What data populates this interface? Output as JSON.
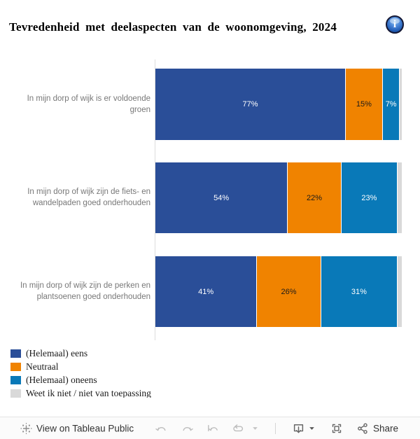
{
  "header": {
    "title": "Tevredenheid met deelaspecten van de woonomgeving, 2024",
    "info_icon": "i"
  },
  "chart_data": {
    "type": "bar",
    "orientation": "horizontal",
    "stacked": true,
    "title": "Tevredenheid met deelaspecten van de woonomgeving, 2024",
    "xlabel": "",
    "ylabel": "",
    "xlim": [
      0,
      100
    ],
    "value_suffix": "%",
    "grid": false,
    "legend_position": "bottom-left",
    "categories": [
      "In mijn dorp of wijk is er voldoende groen",
      "In mijn dorp of wijk zijn de fiets- en wandelpaden goed onderhouden",
      "In mijn dorp of wijk zijn de perken en plantsoenen goed onderhouden"
    ],
    "series": [
      {
        "name": "(Helemaal) eens",
        "color": "#2A4E98",
        "label_color": "#FFFFFF",
        "values": [
          77,
          54,
          41
        ],
        "show_labels": true
      },
      {
        "name": "Neutraal",
        "color": "#F08300",
        "label_color": "#1A1A1A",
        "values": [
          15,
          22,
          26
        ],
        "show_labels": true
      },
      {
        "name": "(Helemaal) oneens",
        "color": "#0979B8",
        "label_color": "#FFFFFF",
        "values": [
          7,
          23,
          31
        ],
        "show_labels": true
      },
      {
        "name": "Weet ik niet / niet van toepassing",
        "color": "#D9D9D9",
        "label_color": "#1A1A1A",
        "values": [
          1,
          2,
          2
        ],
        "show_labels": false
      }
    ]
  },
  "toolbar": {
    "view_label": "View on Tableau Public",
    "share_label": "Share"
  }
}
